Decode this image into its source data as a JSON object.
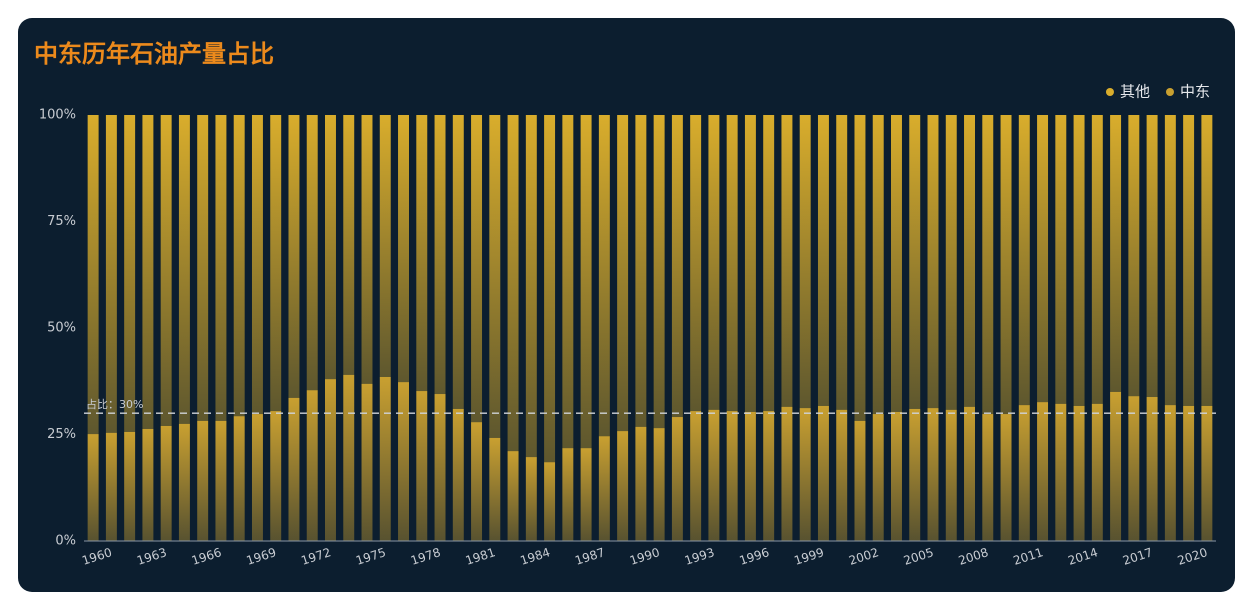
{
  "chart_data": {
    "type": "stacked-bar",
    "title": "中东历年石油产量占比",
    "categories": [
      "1960",
      null,
      null,
      "1963",
      null,
      null,
      "1966",
      null,
      null,
      "1969",
      null,
      null,
      "1972",
      null,
      null,
      "1975",
      null,
      null,
      "1978",
      null,
      null,
      "1981",
      null,
      null,
      "1984",
      null,
      null,
      "1987",
      null,
      null,
      "1990",
      null,
      null,
      "1993",
      null,
      null,
      "1996",
      null,
      null,
      "1999",
      null,
      null,
      "2002",
      null,
      null,
      "2005",
      null,
      null,
      "2008",
      null,
      null,
      "2011",
      null,
      null,
      "2014",
      null,
      null,
      "2017",
      null,
      null,
      "2020",
      null
    ],
    "series": [
      {
        "name": "中东",
        "color": "#c9a030",
        "values": [
          25.1,
          25.4,
          25.6,
          26.3,
          27,
          27.5,
          28.2,
          28.2,
          29.3,
          29.8,
          30.5,
          33.6,
          35.4,
          38,
          39,
          36.9,
          38.5,
          37.3,
          35.2,
          34.5,
          31,
          27.9,
          24.2,
          21.1,
          19.7,
          18.5,
          21.8,
          21.8,
          24.6,
          25.8,
          26.8,
          26.5,
          29.1,
          30.5,
          30.8,
          30.5,
          30.3,
          30.5,
          31.5,
          31.2,
          31.7,
          30.8,
          28.2,
          29.8,
          30.3,
          31,
          31.2,
          30.8,
          31.5,
          29.8,
          29.8,
          31.9,
          32.6,
          32.2,
          31.7,
          32.2,
          35,
          34,
          33.8,
          31.9,
          31.7,
          31.7
        ]
      },
      {
        "name": "其他",
        "color": "#d9ad2c",
        "values": [
          74.9,
          74.6,
          74.4,
          73.7,
          73,
          72.5,
          71.8,
          71.8,
          70.7,
          70.2,
          69.5,
          66.4,
          64.6,
          62,
          61,
          63.1,
          61.5,
          62.7,
          64.8,
          65.5,
          69,
          72.1,
          75.8,
          78.9,
          80.3,
          81.5,
          78.2,
          78.2,
          75.4,
          74.2,
          73.2,
          73.5,
          70.9,
          69.5,
          69.2,
          69.5,
          69.7,
          69.5,
          68.5,
          68.8,
          68.3,
          69.2,
          71.8,
          70.2,
          69.7,
          69,
          68.8,
          69.2,
          68.5,
          70.2,
          70.2,
          68.1,
          67.4,
          67.8,
          68.3,
          67.8,
          65,
          66,
          66.2,
          68.1,
          68.3,
          68.3
        ]
      }
    ],
    "ylim": [
      0,
      100
    ],
    "yticks": [
      {
        "value": 0,
        "label": "0%"
      },
      {
        "value": 25,
        "label": "25%"
      },
      {
        "value": 50,
        "label": "50%"
      },
      {
        "value": 75,
        "label": "75%"
      },
      {
        "value": 100,
        "label": "100%"
      }
    ],
    "mark_line": {
      "value": 30,
      "label": "占比：30%"
    },
    "legend": "top-right"
  }
}
